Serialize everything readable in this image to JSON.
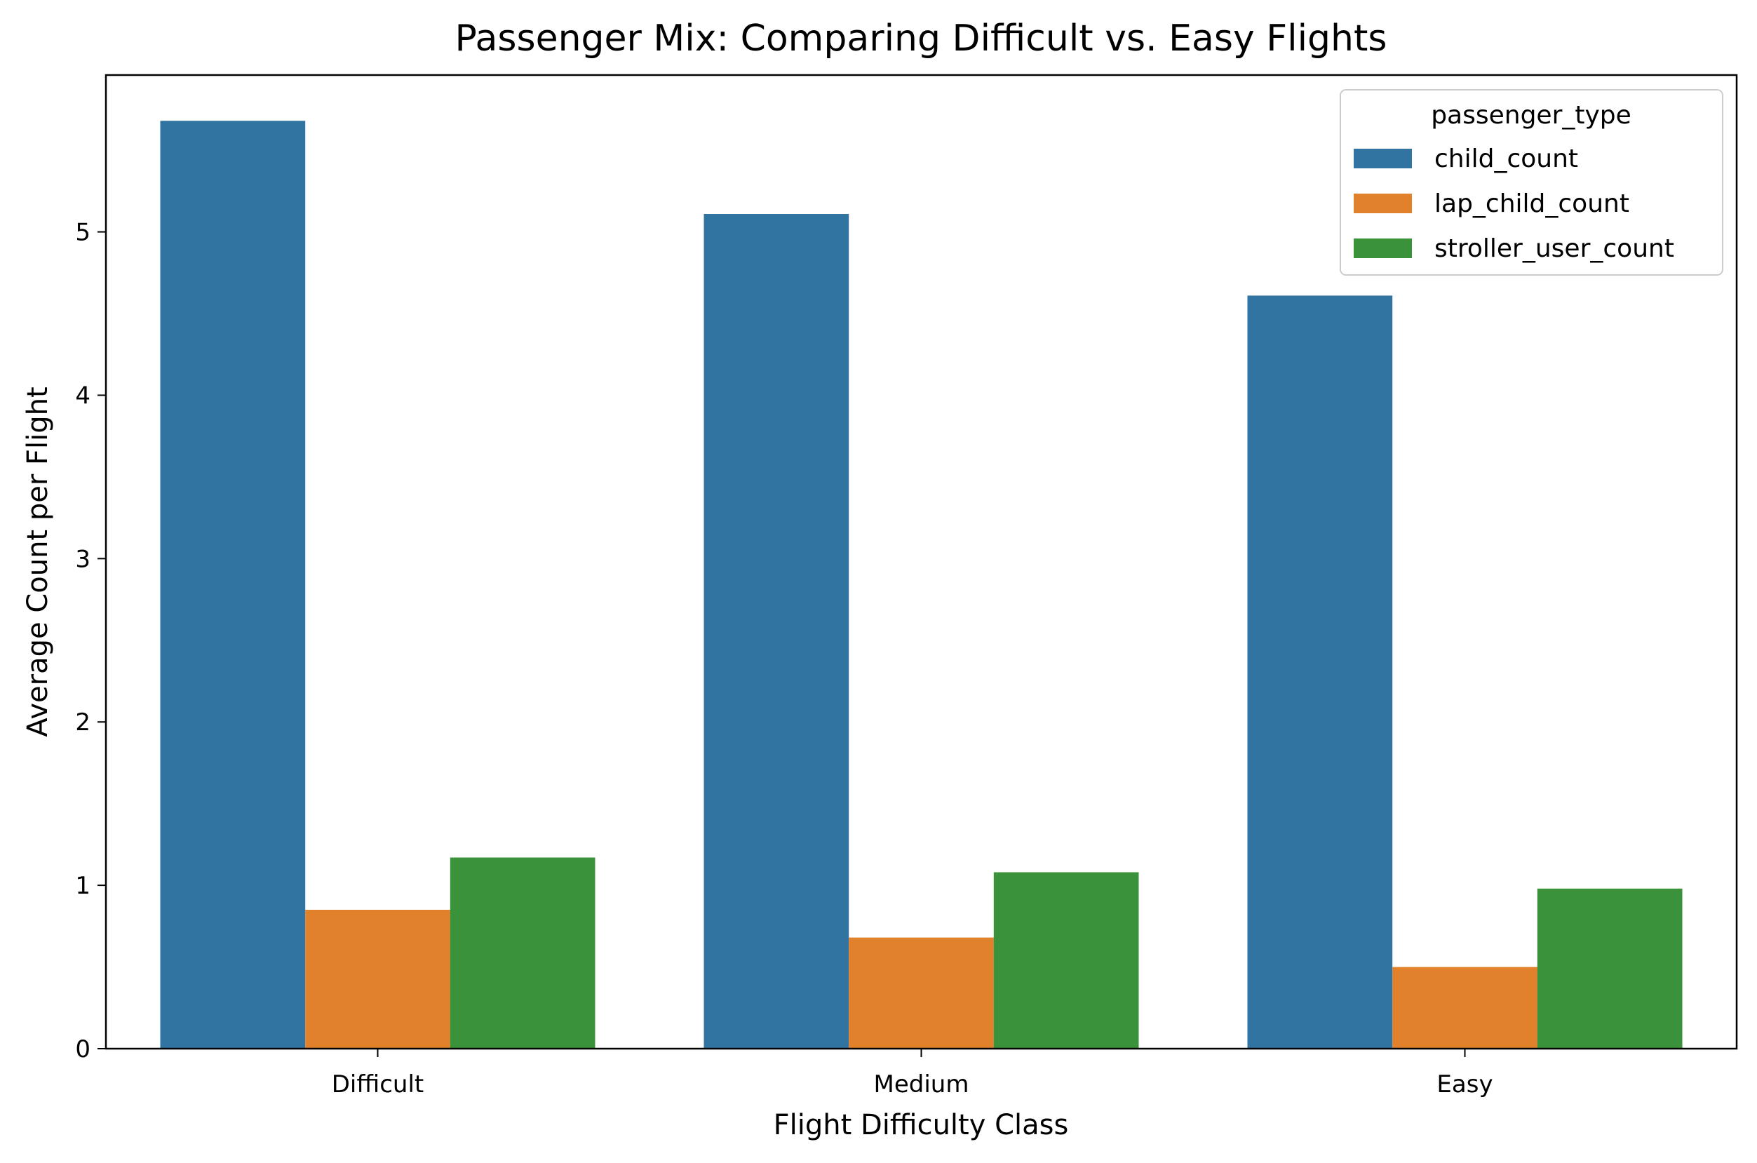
{
  "chart_data": {
    "type": "bar",
    "title": "Passenger Mix: Comparing Difficult vs. Easy Flights",
    "xlabel": "Flight Difficulty Class",
    "ylabel": "Average Count per Flight",
    "categories": [
      "Difficult",
      "Medium",
      "Easy"
    ],
    "series": [
      {
        "name": "child_count",
        "color": "#3274a1",
        "values": [
          5.68,
          5.11,
          4.61
        ]
      },
      {
        "name": "lap_child_count",
        "color": "#e1812c",
        "values": [
          0.85,
          0.68,
          0.5
        ]
      },
      {
        "name": "stroller_user_count",
        "color": "#3a923a",
        "values": [
          1.17,
          1.08,
          0.98
        ]
      }
    ],
    "ylim": [
      0,
      5.96
    ],
    "yticks": [
      0,
      1,
      2,
      3,
      4,
      5
    ],
    "grid": false,
    "legend": {
      "title": "passenger_type",
      "placement": "top-right"
    }
  }
}
